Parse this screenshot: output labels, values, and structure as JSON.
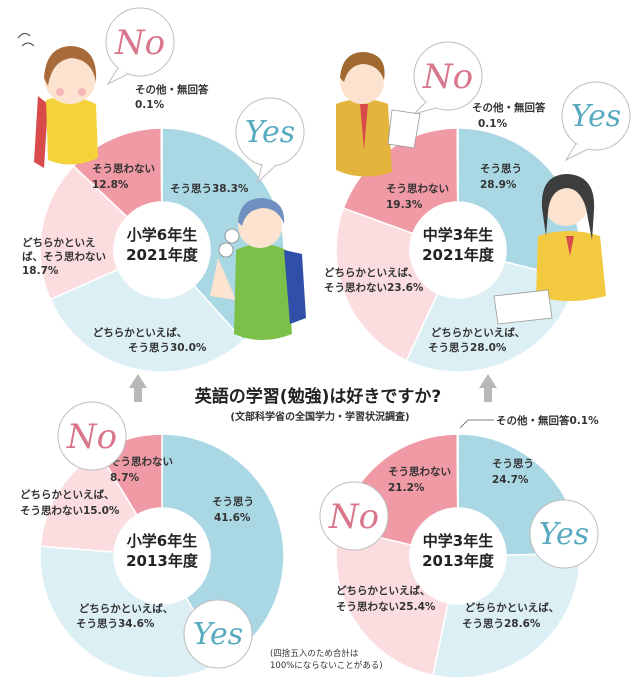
{
  "header": {
    "title": "英語の学習(勉強)は好きですか?",
    "source": "(文部科学省の全国学力・学習状況調査)",
    "note_line1": "(四捨五入のため合計は",
    "note_line2": "100%にならないことがある)"
  },
  "bubbles": {
    "no": "No",
    "yes": "Yes"
  },
  "colors": {
    "so_omou": "#a9d8e4",
    "dochira_omou": "#dbeff5",
    "dochira_omowanai": "#fbdde0",
    "omowanai": "#ef9aa4",
    "other": "#ef9aa4",
    "no_text": "#d8768c",
    "yes_text": "#58aac0"
  },
  "chart_data": [
    {
      "type": "pie",
      "center_line1": "小学6年生",
      "center_line2": "2021年度",
      "slices": [
        {
          "label_line1": "そう思う",
          "label_line2": "",
          "value": 38.3,
          "value_text": "38.3%"
        },
        {
          "label_line1": "どちらかといえば、",
          "label_line2": "そう思う",
          "value": 30.0,
          "value_text": "30.0%"
        },
        {
          "label_line1": "どちらかといえ",
          "label_line2": "ば、そう思わない",
          "value": 18.7,
          "value_text": "18.7%"
        },
        {
          "label_line1": "そう思わない",
          "label_line2": "",
          "value": 12.8,
          "value_text": "12.8%"
        },
        {
          "label_line1": "その他・無回答",
          "label_line2": "",
          "value": 0.1,
          "value_text": "0.1%"
        }
      ]
    },
    {
      "type": "pie",
      "center_line1": "中学3年生",
      "center_line2": "2021年度",
      "slices": [
        {
          "label_line1": "そう思う",
          "label_line2": "",
          "value": 28.9,
          "value_text": "28.9%"
        },
        {
          "label_line1": "どちらかといえば、",
          "label_line2": "そう思う",
          "value": 28.0,
          "value_text": "28.0%"
        },
        {
          "label_line1": "どちらかといえば、",
          "label_line2": "そう思わない",
          "value": 23.6,
          "value_text": "23.6%"
        },
        {
          "label_line1": "そう思わない",
          "label_line2": "",
          "value": 19.3,
          "value_text": "19.3%"
        },
        {
          "label_line1": "その他・無回答",
          "label_line2": "",
          "value": 0.1,
          "value_text": "0.1%"
        }
      ]
    },
    {
      "type": "pie",
      "center_line1": "小学6年生",
      "center_line2": "2013年度",
      "slices": [
        {
          "label_line1": "そう思う",
          "label_line2": "",
          "value": 41.6,
          "value_text": "41.6%"
        },
        {
          "label_line1": "どちらかといえば、",
          "label_line2": "そう思う",
          "value": 34.6,
          "value_text": "34.6%"
        },
        {
          "label_line1": "どちらかといえば、",
          "label_line2": "そう思わない",
          "value": 15.0,
          "value_text": "15.0%"
        },
        {
          "label_line1": "そう思わない",
          "label_line2": "",
          "value": 8.7,
          "value_text": "8.7%"
        }
      ]
    },
    {
      "type": "pie",
      "center_line1": "中学3年生",
      "center_line2": "2013年度",
      "slices": [
        {
          "label_line1": "そう思う",
          "label_line2": "",
          "value": 24.7,
          "value_text": "24.7%"
        },
        {
          "label_line1": "どちらかといえば、",
          "label_line2": "そう思う",
          "value": 28.6,
          "value_text": "28.6%"
        },
        {
          "label_line1": "どちらかといえば、",
          "label_line2": "そう思わない",
          "value": 25.4,
          "value_text": "25.4%"
        },
        {
          "label_line1": "そう思わない",
          "label_line2": "",
          "value": 21.2,
          "value_text": "21.2%"
        },
        {
          "label_line1": "その他・無回答",
          "label_line2": "",
          "value": 0.1,
          "value_text": "0.1%"
        }
      ]
    }
  ]
}
